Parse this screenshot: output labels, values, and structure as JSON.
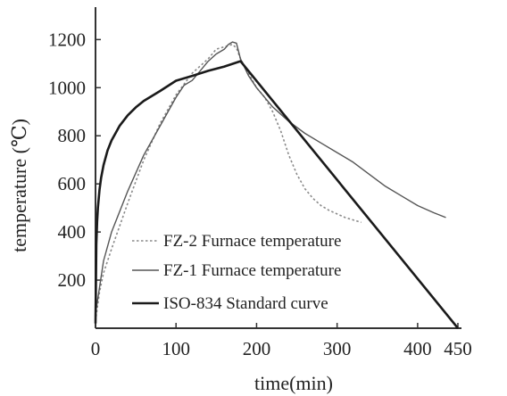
{
  "chart_data": {
    "type": "line",
    "xlabel": "time(min)",
    "ylabel": "temperature (℃)",
    "xlim": [
      0,
      450
    ],
    "ylim": [
      0,
      1300
    ],
    "xticks": [
      0,
      100,
      200,
      300,
      400,
      450
    ],
    "yticks": [
      200,
      400,
      600,
      800,
      1000,
      1200
    ],
    "grid": false,
    "legend_position": "bottom-left",
    "series": [
      {
        "name": "FZ-2 Furnace temperature",
        "style": "dotted",
        "x": [
          0,
          2,
          5,
          10,
          20,
          40,
          60,
          80,
          100,
          120,
          140,
          150,
          160,
          165,
          170,
          175,
          180,
          190,
          200,
          210,
          220,
          230,
          240,
          250,
          260,
          270,
          280,
          290,
          300,
          310,
          320,
          330
        ],
        "y": [
          30,
          80,
          150,
          230,
          330,
          520,
          700,
          850,
          970,
          1060,
          1120,
          1160,
          1170,
          1175,
          1180,
          1165,
          1120,
          1060,
          1000,
          960,
          900,
          820,
          720,
          640,
          580,
          540,
          510,
          490,
          475,
          460,
          450,
          440
        ]
      },
      {
        "name": "FZ-1 Furnace temperature",
        "style": "thin",
        "x": [
          0,
          5,
          10,
          20,
          40,
          60,
          80,
          100,
          110,
          120,
          130,
          140,
          150,
          160,
          165,
          170,
          175,
          180,
          190,
          200,
          220,
          240,
          260,
          280,
          300,
          320,
          340,
          360,
          380,
          400,
          420,
          435
        ],
        "y": [
          60,
          170,
          280,
          400,
          570,
          720,
          840,
          960,
          1010,
          1030,
          1070,
          1110,
          1140,
          1160,
          1180,
          1190,
          1185,
          1120,
          1050,
          1000,
          920,
          860,
          810,
          770,
          730,
          690,
          640,
          590,
          550,
          510,
          480,
          460
        ]
      },
      {
        "name": "ISO-834 Standard curve",
        "style": "thick",
        "x": [
          0,
          1,
          2,
          3,
          5,
          7,
          10,
          15,
          20,
          30,
          40,
          50,
          60,
          80,
          100,
          120,
          140,
          160,
          180,
          450
        ],
        "y": [
          20,
          349,
          444,
          502,
          576,
          626,
          678,
          739,
          781,
          842,
          885,
          918,
          945,
          986,
          1029,
          1049,
          1070,
          1088,
          1110,
          0
        ]
      }
    ]
  }
}
